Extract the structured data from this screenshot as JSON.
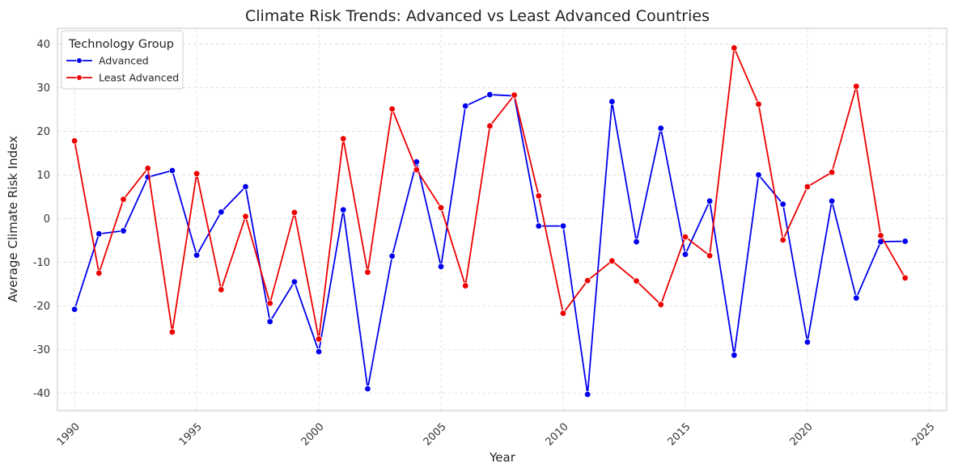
{
  "chart_data": {
    "type": "line",
    "title": "Climate Risk Trends: Advanced vs Least Advanced Countries",
    "xlabel": "Year",
    "ylabel": "Average Climate Risk Index",
    "xlim": [
      1989.3,
      2025.7
    ],
    "ylim": [
      -44,
      43.6
    ],
    "x_ticks": [
      1990,
      1995,
      2000,
      2005,
      2010,
      2015,
      2020,
      2025
    ],
    "y_ticks": [
      -40,
      -30,
      -20,
      -10,
      0,
      10,
      20,
      30,
      40
    ],
    "grid": true,
    "legend_title": "Technology Group",
    "legend_position": "top-left",
    "x": [
      1990,
      1991,
      1992,
      1993,
      1994,
      1995,
      1996,
      1997,
      1998,
      1999,
      2000,
      2001,
      2002,
      2003,
      2004,
      2005,
      2006,
      2007,
      2008,
      2009,
      2010,
      2011,
      2012,
      2013,
      2014,
      2015,
      2016,
      2017,
      2018,
      2019,
      2020,
      2021,
      2022,
      2023,
      2024
    ],
    "series": [
      {
        "name": "Advanced",
        "color": "#0000ee",
        "values": [
          -20.8,
          -3.5,
          -2.8,
          9.5,
          11,
          -8.4,
          1.5,
          7.3,
          -23.6,
          -14.5,
          -30.5,
          2,
          -39,
          -8.6,
          13,
          -11,
          25.8,
          28.4,
          28.1,
          -1.7,
          -1.7,
          -40.3,
          26.8,
          -5.3,
          20.7,
          -8.2,
          4,
          -31.3,
          10,
          3.3,
          -28.3,
          4,
          -18.2,
          -5.3,
          -5.2
        ]
      },
      {
        "name": "Least Advanced",
        "color": "#ee0000",
        "values": [
          17.8,
          -12.5,
          4.4,
          11.5,
          -26,
          10.3,
          -16.3,
          0.5,
          -19.4,
          1.4,
          -27.6,
          18.3,
          -12.3,
          25.1,
          11.2,
          2.5,
          -15.4,
          21.2,
          28.3,
          5.2,
          -21.7,
          -14.2,
          -9.7,
          -14.3,
          -19.7,
          -4.2,
          -8.5,
          39.1,
          26.2,
          -4.9,
          7.3,
          10.6,
          30.3,
          -3.9,
          -13.6
        ]
      }
    ]
  }
}
